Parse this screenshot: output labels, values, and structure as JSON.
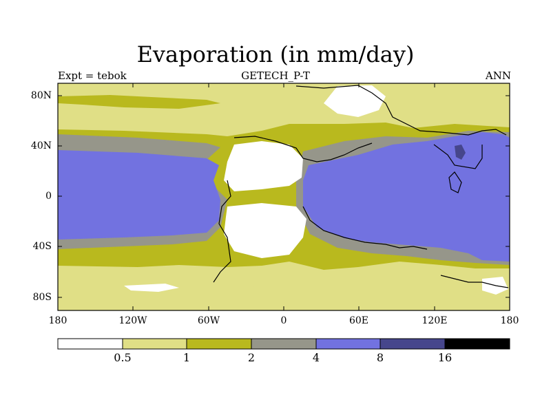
{
  "title": "Evaporation (in mm/day)",
  "subtitle": "GETECH_P-T",
  "left_label": "Expt = tebok",
  "right_label": "ANN",
  "map": {
    "lat_ticks": [
      "80N",
      "40N",
      "0",
      "40S",
      "80S"
    ],
    "lon_ticks": [
      "180",
      "120W",
      "60W",
      "0",
      "60E",
      "120E",
      "180"
    ]
  },
  "colorbar": {
    "labels": [
      "0.5",
      "1",
      "2",
      "4",
      "8",
      "16"
    ],
    "colors": [
      "#ffffff",
      "#e0df86",
      "#b9b91e",
      "#96968a",
      "#7272e0",
      "#46468c",
      "#000000"
    ]
  }
}
